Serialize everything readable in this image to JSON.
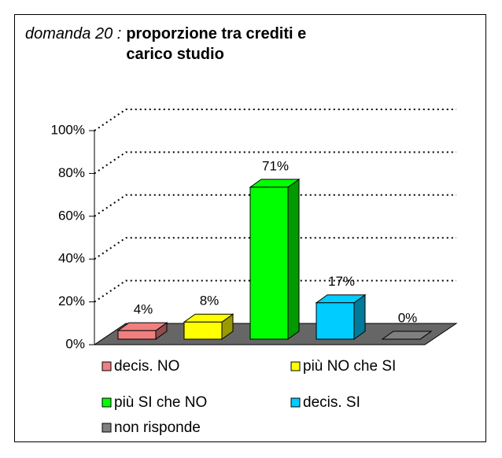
{
  "chart_data": {
    "type": "bar3d",
    "question": "domanda 20 :",
    "title": "proporzione tra crediti e carico studio",
    "categories": [
      "decis. NO",
      "più NO che SI",
      "più SI che NO",
      "decis. SI",
      "non risponde"
    ],
    "values": [
      4,
      8,
      71,
      17,
      0
    ],
    "value_labels": [
      "4%",
      "8%",
      "71%",
      "17%",
      "0%"
    ],
    "colors": [
      "#f08080",
      "#ffff00",
      "#00ff00",
      "#00ccff",
      "#808080"
    ],
    "ylim": [
      0,
      100
    ],
    "yticks": [
      {
        "value": 0,
        "label": "0%"
      },
      {
        "value": 20,
        "label": "20%"
      },
      {
        "value": 40,
        "label": "40%"
      },
      {
        "value": 60,
        "label": "60%"
      },
      {
        "value": 80,
        "label": "80%"
      },
      {
        "value": 100,
        "label": "100%"
      }
    ],
    "grid": true
  }
}
